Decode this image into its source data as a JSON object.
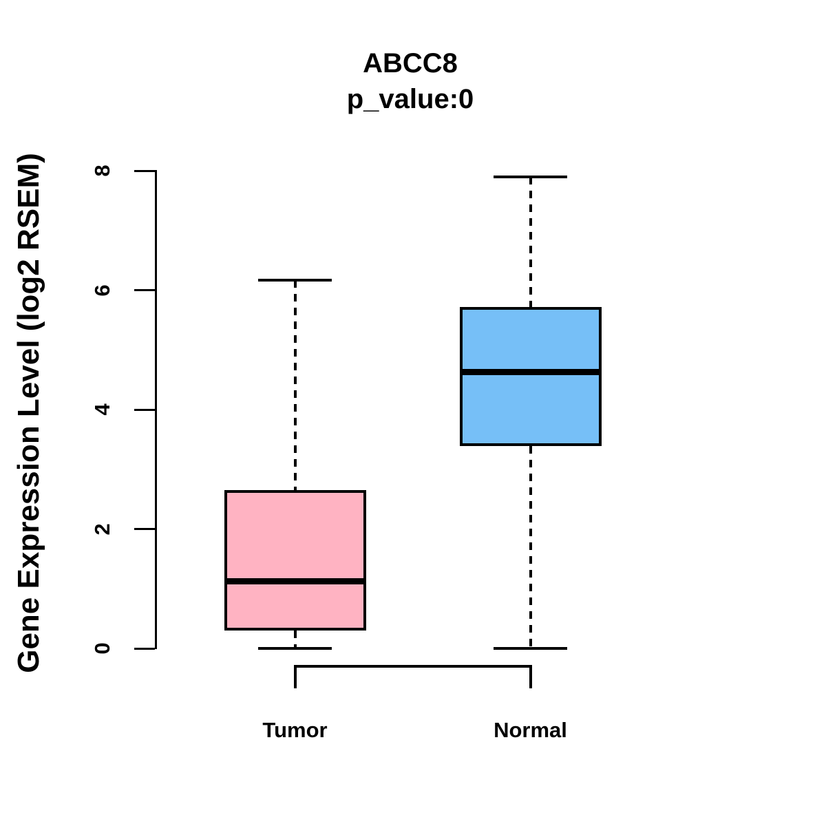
{
  "chart_data": {
    "type": "boxplot",
    "title": "ABCC8",
    "subtitle": "p_value:0",
    "ylabel": "Gene Expression Level (log2 RSEM)",
    "xlabel": "",
    "categories": [
      "Tumor",
      "Normal"
    ],
    "series": [
      {
        "name": "Tumor",
        "color": "#FFB3C2",
        "whisker_low": 0,
        "q1": 0.3,
        "median": 1.13,
        "q3": 2.65,
        "whisker_high": 6.17
      },
      {
        "name": "Normal",
        "color": "#76BFF7",
        "whisker_low": 0,
        "q1": 3.39,
        "median": 4.63,
        "q3": 5.72,
        "whisker_high": 7.9
      }
    ],
    "y_ticks": [
      0,
      2,
      4,
      6,
      8
    ],
    "ylim": [
      0,
      8
    ],
    "grid": false,
    "legend": "none",
    "colors": {
      "box_border": "#000000",
      "text": "#000000",
      "background": "#FFFFFF"
    }
  }
}
